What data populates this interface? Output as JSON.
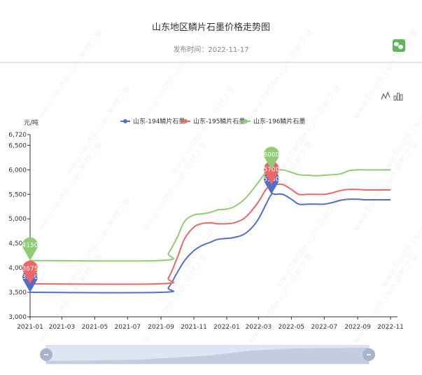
{
  "header": {
    "title": "山东地区鳞片石墨价格走势图",
    "publish_label": "发布时间：2022-11-17"
  },
  "toolbox": {
    "icons": [
      "line-chart-icon",
      "bar-chart-icon"
    ]
  },
  "chart_data": {
    "type": "line",
    "ylabel": "元/吨",
    "ylim": [
      3000,
      6720
    ],
    "y_ticks": [
      "3,000",
      "3,500",
      "4,000",
      "4,500",
      "5,000",
      "5,500",
      "6,000",
      "6,500",
      "6,720"
    ],
    "x_ticks": [
      "2021-01",
      "2021-03",
      "2021-05",
      "2021-07",
      "2021-09",
      "2021-11",
      "2022-01",
      "2022-03",
      "2022-05",
      "2022-07",
      "2022-09",
      "2022-11"
    ],
    "x": [
      "2021-01-01",
      "2021-09-01",
      "2021-09-15",
      "2021-10-01",
      "2021-10-15",
      "2021-11-01",
      "2021-11-15",
      "2021-12-01",
      "2021-12-15",
      "2022-01-01",
      "2022-01-15",
      "2022-02-01",
      "2022-02-15",
      "2022-03-01",
      "2022-03-15",
      "2022-03-25",
      "2022-04-01",
      "2022-04-15",
      "2022-05-01",
      "2022-05-15",
      "2022-06-01",
      "2022-06-15",
      "2022-07-01",
      "2022-07-15",
      "2022-08-01",
      "2022-08-15",
      "2022-09-01",
      "2022-09-15",
      "2022-10-01",
      "2022-11-01"
    ],
    "series": [
      {
        "name": "山东-194鳞片石墨",
        "color": "#5470c6",
        "values": [
          3500,
          3500,
          3600,
          3900,
          4150,
          4350,
          4450,
          4520,
          4580,
          4600,
          4620,
          4680,
          4800,
          5000,
          5300,
          5500,
          5500,
          5500,
          5400,
          5300,
          5300,
          5300,
          5300,
          5330,
          5380,
          5400,
          5400,
          5390,
          5390,
          5390
        ]
      },
      {
        "name": "山东-195鳞片石墨",
        "color": "#ee6666",
        "values": [
          3675,
          3675,
          3800,
          4200,
          4600,
          4830,
          4900,
          4920,
          4900,
          4900,
          4920,
          5000,
          5150,
          5350,
          5600,
          5700,
          5700,
          5700,
          5600,
          5500,
          5500,
          5500,
          5500,
          5530,
          5580,
          5600,
          5600,
          5590,
          5590,
          5590
        ]
      },
      {
        "name": "山东-196鳞片石墨",
        "color": "#91cc75",
        "values": [
          4150,
          4150,
          4300,
          4620,
          4950,
          5080,
          5100,
          5130,
          5180,
          5200,
          5250,
          5380,
          5550,
          5750,
          5950,
          6000,
          6000,
          6000,
          5950,
          5900,
          5890,
          5880,
          5890,
          5900,
          5920,
          5980,
          6000,
          6000,
          6000,
          6000
        ]
      }
    ],
    "markers": [
      {
        "series": 0,
        "point": 0,
        "label": "3500"
      },
      {
        "series": 1,
        "point": 0,
        "label": "3675"
      },
      {
        "series": 2,
        "point": 0,
        "label": "4150"
      },
      {
        "series": 0,
        "point": 15,
        "label": "5500"
      },
      {
        "series": 1,
        "point": 15,
        "label": "5700"
      },
      {
        "series": 2,
        "point": 15,
        "label": "6000"
      }
    ],
    "legend_position": "top-center",
    "grid": false,
    "watermark": "www.fm086.com 新材之窗"
  }
}
